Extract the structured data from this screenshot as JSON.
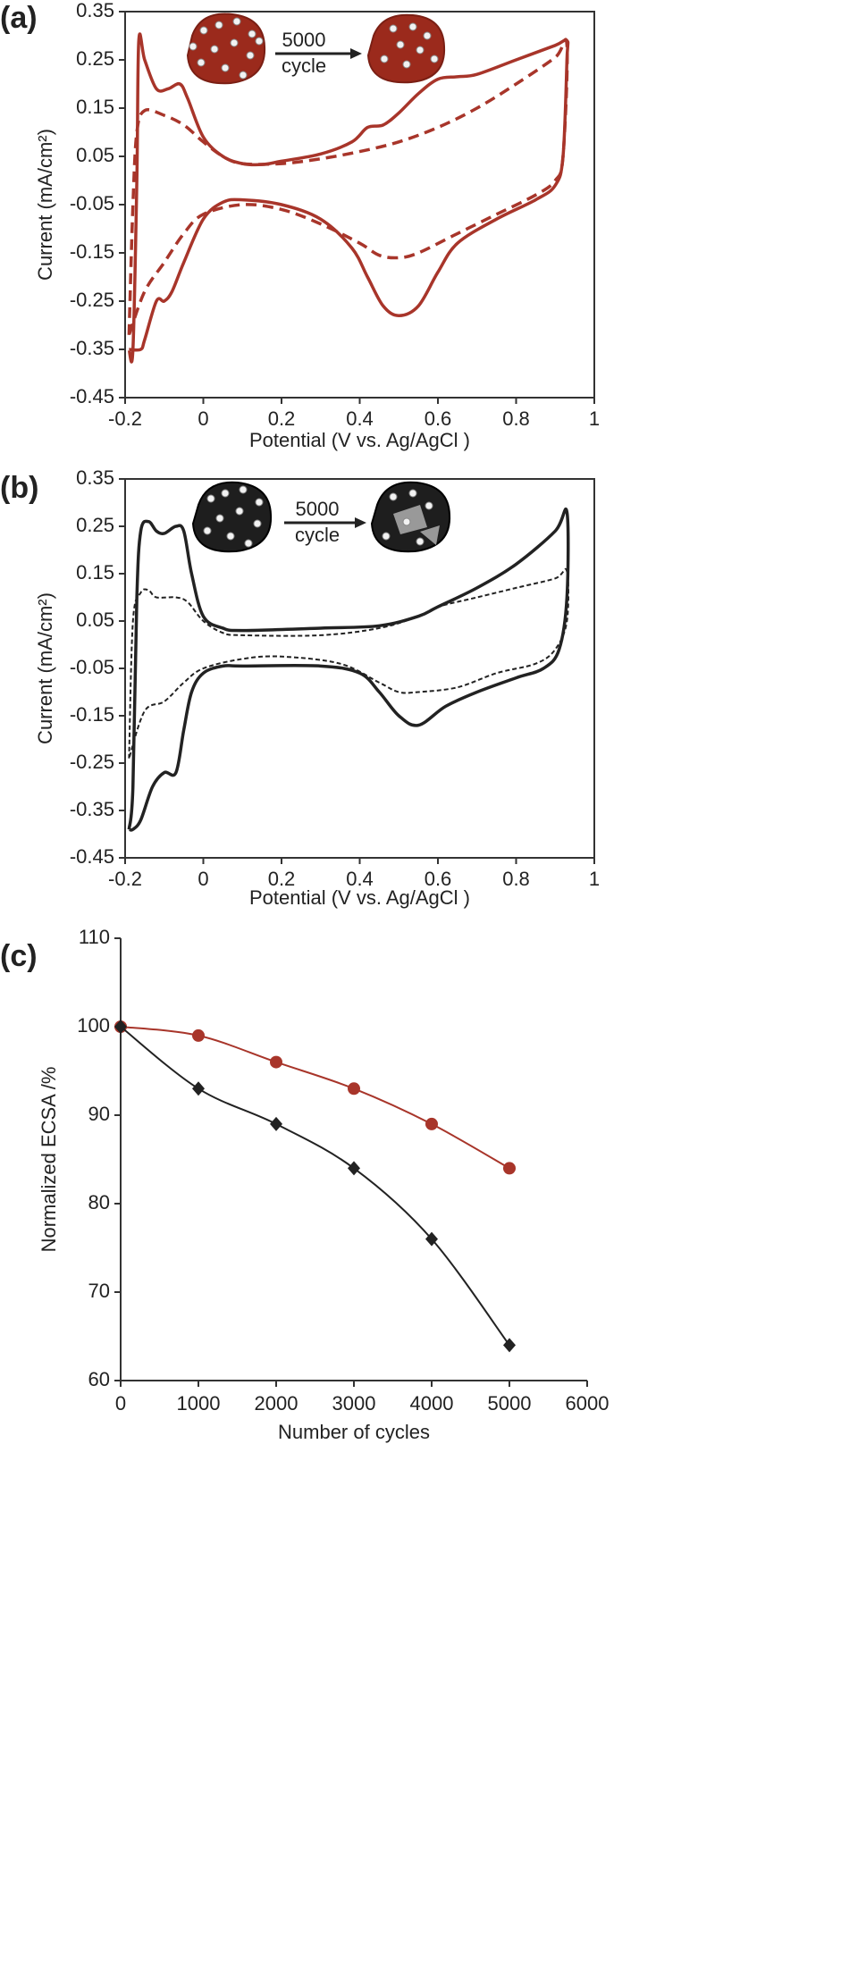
{
  "chart_data": [
    {
      "type": "line",
      "label": "(a)",
      "x_label": "Potential (V vs. Ag/AgCl )",
      "y_label": "Current (mA/cm²)",
      "annotations": [
        "5000",
        "cycle"
      ],
      "xlim": [
        -0.2,
        1
      ],
      "xticks": [
        -0.2,
        0,
        0.2,
        0.4,
        0.6,
        0.8,
        1
      ],
      "ylim": [
        -0.45,
        0.35
      ],
      "yticks": [
        -0.45,
        -0.35,
        -0.25,
        -0.15,
        -0.05,
        0.05,
        0.15,
        0.25,
        0.35
      ],
      "series": [
        {
          "color": "#a8352a",
          "line_style": "solid",
          "x": [
            -0.19,
            -0.18,
            -0.17,
            -0.165,
            -0.15,
            -0.12,
            -0.09,
            -0.06,
            -0.04,
            0,
            0.05,
            0.1,
            0.15,
            0.2,
            0.3,
            0.38,
            0.42,
            0.46,
            0.5,
            0.55,
            0.6,
            0.65,
            0.7,
            0.8,
            0.9,
            0.93,
            0.93,
            0.92,
            0.9,
            0.85,
            0.75,
            0.65,
            0.6,
            0.55,
            0.5,
            0.46,
            0.42,
            0.38,
            0.3,
            0.2,
            0.1,
            0.05,
            0,
            -0.05,
            -0.08,
            -0.1,
            -0.12,
            -0.15,
            -0.16,
            -0.19
          ],
          "values": [
            -0.35,
            -0.35,
            0.0,
            0.29,
            0.25,
            0.19,
            0.19,
            0.2,
            0.17,
            0.09,
            0.05,
            0.035,
            0.033,
            0.04,
            0.055,
            0.08,
            0.11,
            0.115,
            0.14,
            0.18,
            0.21,
            0.215,
            0.22,
            0.25,
            0.28,
            0.29,
            0.25,
            0.05,
            -0.01,
            -0.04,
            -0.08,
            -0.13,
            -0.19,
            -0.26,
            -0.28,
            -0.26,
            -0.2,
            -0.14,
            -0.08,
            -0.05,
            -0.04,
            -0.045,
            -0.08,
            -0.17,
            -0.23,
            -0.25,
            -0.25,
            -0.33,
            -0.35,
            -0.35
          ]
        },
        {
          "color": "#a8352a",
          "line_style": "dashed",
          "x": [
            -0.19,
            -0.18,
            -0.17,
            -0.15,
            -0.1,
            -0.05,
            0,
            0.05,
            0.1,
            0.2,
            0.3,
            0.4,
            0.5,
            0.6,
            0.7,
            0.8,
            0.9,
            0.93,
            0.92,
            0.9,
            0.85,
            0.75,
            0.65,
            0.55,
            0.5,
            0.45,
            0.4,
            0.3,
            0.2,
            0.1,
            0,
            -0.05,
            -0.1,
            -0.15,
            -0.19
          ],
          "values": [
            -0.32,
            -0.05,
            0.1,
            0.145,
            0.135,
            0.115,
            0.08,
            0.05,
            0.035,
            0.035,
            0.045,
            0.06,
            0.08,
            0.11,
            0.15,
            0.2,
            0.255,
            0.28,
            0.05,
            0.0,
            -0.03,
            -0.07,
            -0.11,
            -0.15,
            -0.16,
            -0.155,
            -0.13,
            -0.09,
            -0.06,
            -0.05,
            -0.07,
            -0.11,
            -0.17,
            -0.23,
            -0.32
          ]
        }
      ]
    },
    {
      "type": "line",
      "label": "(b)",
      "x_label": "Potential (V vs. Ag/AgCl )",
      "y_label": "Current (mA/cm²)",
      "annotations": [
        "5000",
        "cycle"
      ],
      "xlim": [
        -0.2,
        1
      ],
      "xticks": [
        -0.2,
        0,
        0.2,
        0.4,
        0.6,
        0.8,
        1
      ],
      "ylim": [
        -0.45,
        0.35
      ],
      "yticks": [
        -0.45,
        -0.35,
        -0.25,
        -0.15,
        -0.05,
        0.05,
        0.15,
        0.25,
        0.35
      ],
      "series": [
        {
          "color": "#222222",
          "line_style": "solid",
          "x": [
            -0.19,
            -0.18,
            -0.17,
            -0.16,
            -0.14,
            -0.12,
            -0.1,
            -0.07,
            -0.05,
            -0.03,
            0,
            0.05,
            0.1,
            0.3,
            0.45,
            0.55,
            0.6,
            0.7,
            0.8,
            0.9,
            0.93,
            0.93,
            0.91,
            0.87,
            0.8,
            0.7,
            0.62,
            0.55,
            0.5,
            0.45,
            0.4,
            0.3,
            0.1,
            0.05,
            0,
            -0.03,
            -0.05,
            -0.07,
            -0.1,
            -0.13,
            -0.16,
            -0.18,
            -0.19
          ],
          "values": [
            -0.39,
            -0.3,
            0.1,
            0.24,
            0.26,
            0.24,
            0.235,
            0.25,
            0.24,
            0.15,
            0.06,
            0.035,
            0.03,
            0.035,
            0.04,
            0.06,
            0.08,
            0.12,
            0.17,
            0.24,
            0.28,
            0.1,
            -0.01,
            -0.05,
            -0.07,
            -0.1,
            -0.13,
            -0.17,
            -0.15,
            -0.1,
            -0.06,
            -0.045,
            -0.045,
            -0.045,
            -0.06,
            -0.1,
            -0.18,
            -0.27,
            -0.27,
            -0.3,
            -0.37,
            -0.39,
            -0.39
          ]
        },
        {
          "color": "#222222",
          "line_style": "dotted",
          "x": [
            -0.19,
            -0.18,
            -0.16,
            -0.14,
            -0.12,
            -0.07,
            -0.04,
            0,
            0.05,
            0.1,
            0.3,
            0.45,
            0.55,
            0.6,
            0.7,
            0.8,
            0.9,
            0.93,
            0.93,
            0.9,
            0.85,
            0.75,
            0.65,
            0.55,
            0.5,
            0.45,
            0.35,
            0.2,
            0.1,
            0,
            -0.05,
            -0.1,
            -0.15,
            -0.19
          ],
          "values": [
            -0.24,
            0.05,
            0.11,
            0.115,
            0.1,
            0.1,
            0.09,
            0.05,
            0.025,
            0.02,
            0.02,
            0.035,
            0.06,
            0.08,
            0.1,
            0.12,
            0.14,
            0.155,
            0.05,
            -0.01,
            -0.04,
            -0.06,
            -0.09,
            -0.1,
            -0.1,
            -0.08,
            -0.04,
            -0.025,
            -0.03,
            -0.05,
            -0.08,
            -0.12,
            -0.14,
            -0.24
          ]
        }
      ]
    },
    {
      "type": "line",
      "label": "(c)",
      "x_label": "Number of cycles",
      "y_label": "Normalized ECSA /%",
      "x": [
        0,
        1000,
        2000,
        3000,
        4000,
        5000
      ],
      "xlim": [
        0,
        6000
      ],
      "xticks": [
        0,
        1000,
        2000,
        3000,
        4000,
        5000,
        6000
      ],
      "ylim": [
        60,
        110
      ],
      "yticks": [
        60,
        70,
        80,
        90,
        100,
        110
      ],
      "series": [
        {
          "color": "#a8352a",
          "line_style": "solid",
          "marker": "circle",
          "values": [
            100,
            99,
            96,
            93,
            89,
            84
          ]
        },
        {
          "color": "#222222",
          "line_style": "solid",
          "marker": "diamond",
          "values": [
            100,
            93,
            89,
            84,
            76,
            64
          ]
        }
      ]
    }
  ]
}
